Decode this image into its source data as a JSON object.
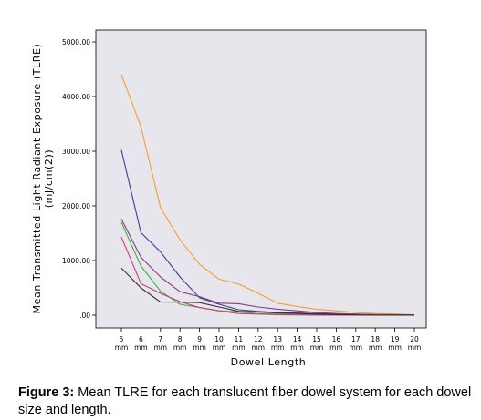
{
  "chart_data": {
    "type": "line",
    "xlabel": "Dowel Length",
    "ylabel": "Mean Transmitted Light Radiant Exposure (TLRE)",
    "ylabel_unit": "(mJ/cm(2))",
    "ylim": [
      0,
      5000
    ],
    "yticks": [
      ".00",
      "1000.00",
      "2000.00",
      "3000.00",
      "4000.00",
      "5000.00"
    ],
    "ytick_values": [
      0,
      1000,
      2000,
      3000,
      4000,
      5000
    ],
    "categories": [
      "5",
      "6",
      "7",
      "8",
      "9",
      "10",
      "11",
      "12",
      "13",
      "14",
      "15",
      "16",
      "17",
      "18",
      "19",
      "20"
    ],
    "category_unit": "mm",
    "grid": false,
    "background_color": "#e6e6ec",
    "series": [
      {
        "color": "#f5a030",
        "values": [
          4400,
          3450,
          1970,
          1380,
          930,
          660,
          570,
          400,
          220,
          160,
          110,
          80,
          50,
          30,
          20,
          10
        ]
      },
      {
        "color": "#3c3ca0",
        "values": [
          3020,
          1510,
          1160,
          700,
          320,
          200,
          100,
          70,
          50,
          40,
          30,
          20,
          20,
          10,
          10,
          5
        ]
      },
      {
        "color": "#8a3a8a",
        "values": [
          1760,
          1060,
          700,
          430,
          340,
          220,
          210,
          150,
          110,
          80,
          50,
          30,
          20,
          10,
          5,
          0
        ]
      },
      {
        "color": "#40b040",
        "values": [
          1700,
          900,
          440,
          200,
          140,
          80,
          60,
          30,
          20,
          10,
          5,
          0,
          0,
          0,
          0,
          0
        ]
      },
      {
        "color": "#d03a7a",
        "values": [
          1430,
          580,
          400,
          250,
          140,
          80,
          30,
          20,
          10,
          5,
          0,
          0,
          0,
          0,
          0,
          0
        ]
      },
      {
        "color": "#303030",
        "values": [
          860,
          500,
          240,
          240,
          230,
          150,
          70,
          60,
          40,
          30,
          20,
          10,
          5,
          0,
          0,
          0
        ]
      }
    ]
  },
  "caption": {
    "label": "Figure 3:",
    "text": " Mean TLRE for each translucent fiber dowel system for each dowel size and length."
  }
}
